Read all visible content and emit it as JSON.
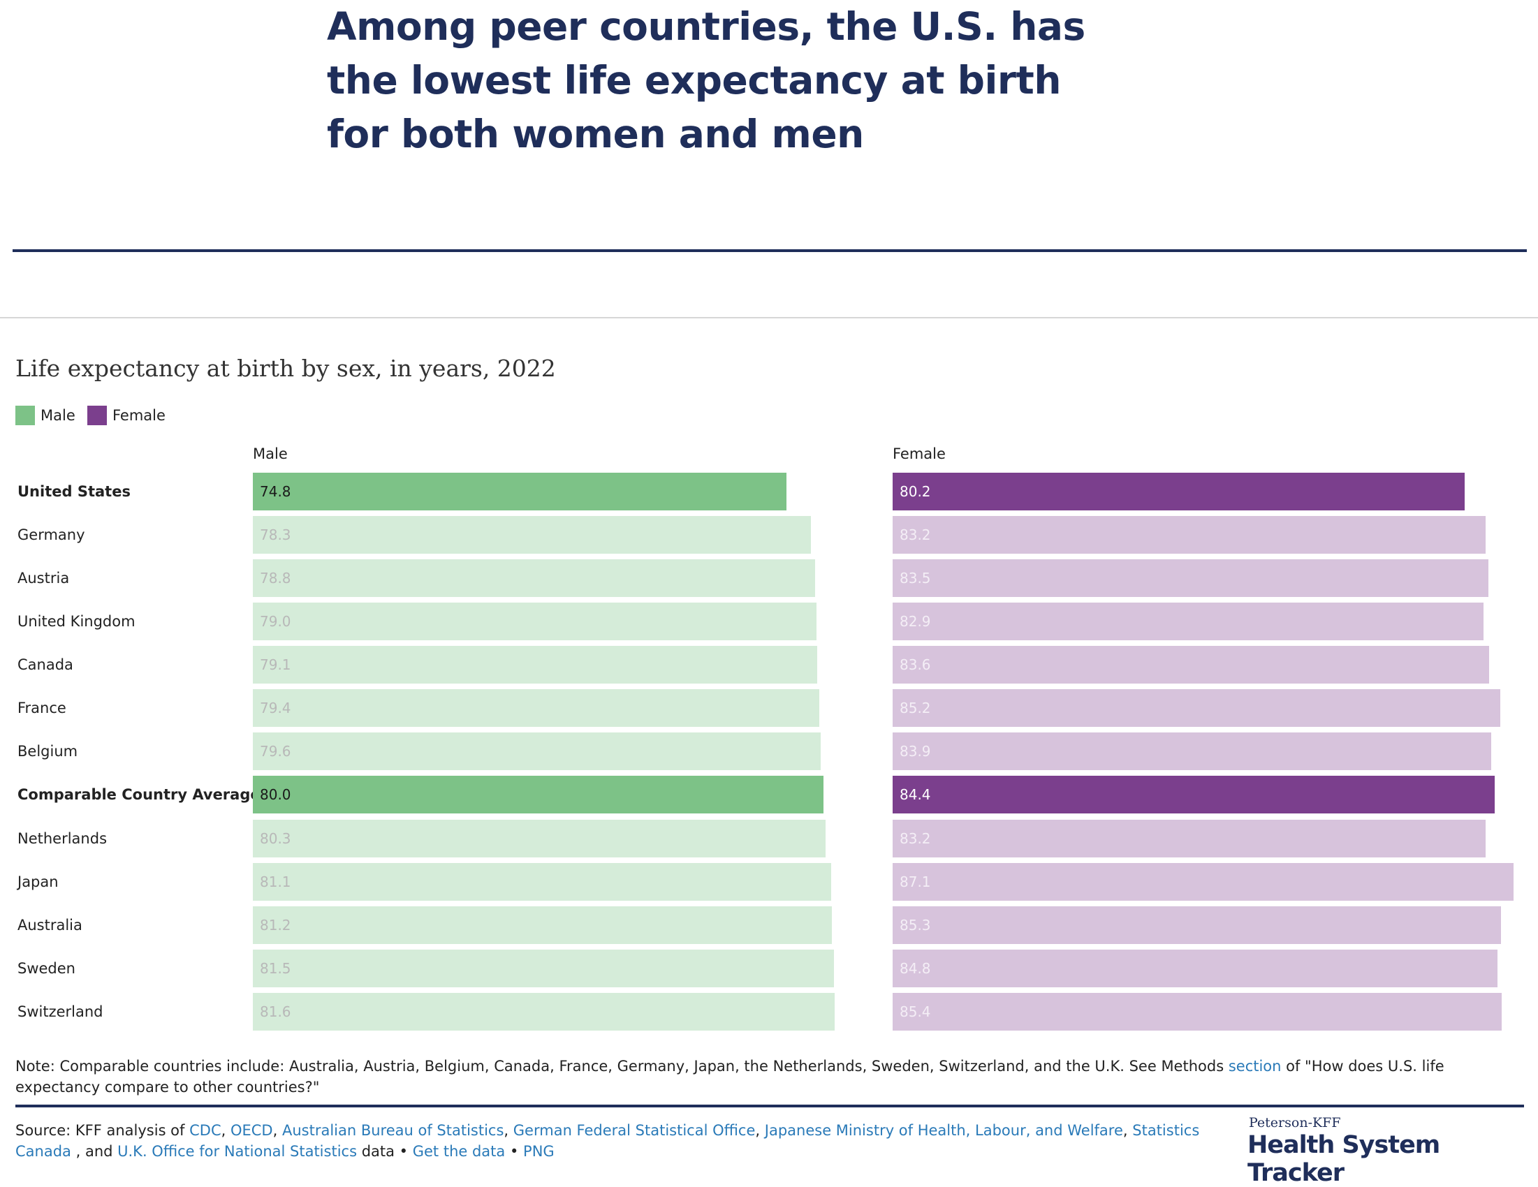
{
  "headline": "Among peer countries, the U.S. has the lowest life expectancy at birth for both women and men",
  "colors": {
    "male": "#7dc287",
    "male_light": "#d5ecd9",
    "female": "#7b3f8d",
    "female_light": "#d7c3dc",
    "navy": "#1f2e5a",
    "link": "#2a7ab8"
  },
  "chart_data": {
    "type": "bar",
    "orientation": "horizontal",
    "title": "Life expectancy at birth by sex, in years, 2022",
    "legend": [
      "Male",
      "Female"
    ],
    "legend_placement": "top-left",
    "grid": false,
    "panels": [
      "Male",
      "Female"
    ],
    "categories": [
      "United States",
      "Germany",
      "Austria",
      "United Kingdom",
      "Canada",
      "France",
      "Belgium",
      "Comparable Country Average",
      "Netherlands",
      "Japan",
      "Australia",
      "Sweden",
      "Switzerland"
    ],
    "highlighted": [
      "United States",
      "Comparable Country Average"
    ],
    "series": [
      {
        "name": "Male",
        "values": [
          74.8,
          78.3,
          78.8,
          79.0,
          79.1,
          79.4,
          79.6,
          80.0,
          80.3,
          81.1,
          81.2,
          81.5,
          81.6
        ]
      },
      {
        "name": "Female",
        "values": [
          80.2,
          83.2,
          83.5,
          82.9,
          83.6,
          85.2,
          83.9,
          84.4,
          83.2,
          87.1,
          85.3,
          84.8,
          85.4
        ]
      }
    ],
    "xlim": [
      0,
      87.1
    ]
  },
  "note": {
    "before": "Note: Comparable countries include: Australia, Austria, Belgium, Canada, France, Germany, Japan, the Netherlands, Sweden, Switzerland, and the U.K. See Methods ",
    "link": "section",
    "after": " of \"How does U.S. life expectancy compare to other countries?\""
  },
  "source": [
    {
      "text": "Source: KFF analysis of ",
      "link": false
    },
    {
      "text": "CDC",
      "link": true
    },
    {
      "text": ", ",
      "link": false
    },
    {
      "text": "OECD",
      "link": true
    },
    {
      "text": ", ",
      "link": false
    },
    {
      "text": "Australian Bureau of Statistics",
      "link": true
    },
    {
      "text": ", ",
      "link": false
    },
    {
      "text": "German Federal Statistical Office",
      "link": true
    },
    {
      "text": ", ",
      "link": false
    },
    {
      "text": "Japanese Ministry of Health, Labour, and Welfare",
      "link": true
    },
    {
      "text": ", ",
      "link": false
    },
    {
      "text": "Statistics Canada",
      "link": true
    },
    {
      "text": " , and ",
      "link": false
    },
    {
      "text": "U.K. Office for National Statistics",
      "link": true
    },
    {
      "text": " data • ",
      "link": false
    },
    {
      "text": "Get the data",
      "link": true
    },
    {
      "text": " • ",
      "link": false
    },
    {
      "text": "PNG",
      "link": true
    }
  ],
  "logo": {
    "small": "Peterson-KFF",
    "big": "Health System Tracker"
  }
}
